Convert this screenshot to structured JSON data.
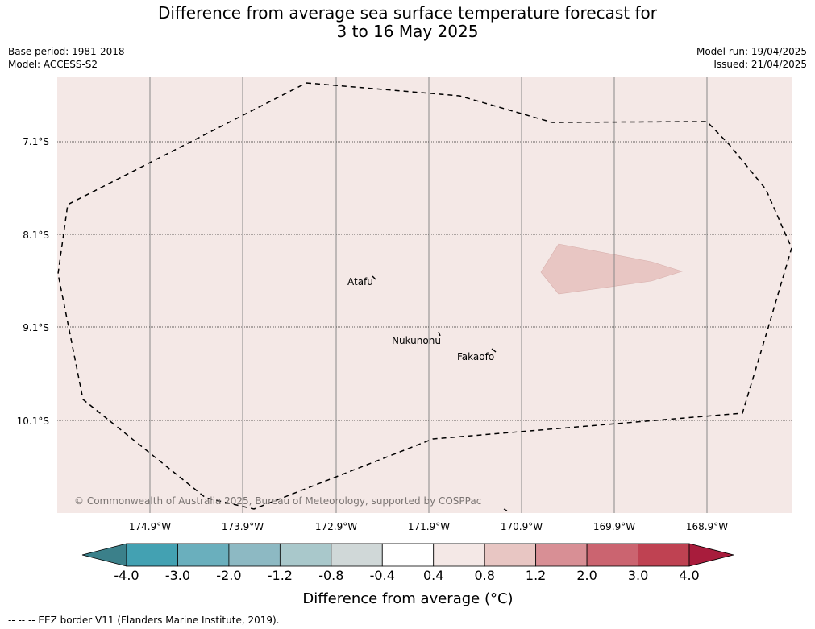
{
  "title": {
    "line1": "Difference from average sea surface temperature forecast for",
    "line2": "3 to 16 May 2025"
  },
  "meta": {
    "base_period": "Base period: 1981-2018",
    "model": "Model: ACCESS-S2",
    "model_run": "Model run: 19/04/2025",
    "issued": "Issued: 21/04/2025"
  },
  "map": {
    "background_color": "#f4e8e6",
    "anomaly_patch_color": "#e8c6c3",
    "lat_labels": [
      "7.1°S",
      "8.1°S",
      "9.1°S",
      "10.1°S"
    ],
    "lon_labels": [
      "174.9°W",
      "173.9°W",
      "172.9°W",
      "171.9°W",
      "170.9°W",
      "169.9°W",
      "168.9°W"
    ],
    "places": [
      "Atafu",
      "Nukunonu",
      "Fakaofo"
    ],
    "copyright": "© Commonwealth of Australia 2025, Bureau of Meteorology, supported by COSPPac"
  },
  "colorbar": {
    "ticks": [
      "-4.0",
      "-3.0",
      "-2.0",
      "-1.2",
      "-0.8",
      "-0.4",
      "0.4",
      "0.8",
      "1.2",
      "2.0",
      "3.0",
      "4.0"
    ],
    "colors": [
      "#43a1b2",
      "#6aafbd",
      "#8db9c3",
      "#a9c8cb",
      "#d0d8d8",
      "#ffffff",
      "#f4e8e6",
      "#e8c6c3",
      "#d88f95",
      "#cb6470",
      "#bf4252"
    ],
    "low_extend_color": "#3b808a",
    "high_extend_color": "#a81c3c",
    "label": "Difference from average (°C)"
  },
  "legend_footer": "--  --  -- EEZ border V11 (Flanders Marine Institute, 2019)."
}
